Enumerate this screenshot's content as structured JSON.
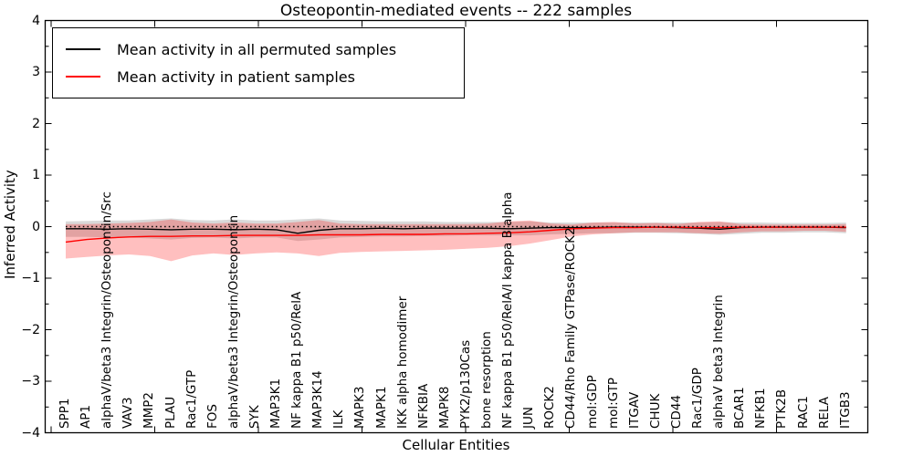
{
  "chart_data": {
    "type": "line",
    "title": "Osteopontin-mediated events -- 222 samples",
    "xlabel": "Cellular Entities",
    "ylabel": "Inferred Activity",
    "ylim": [
      -4,
      4
    ],
    "yticks": [
      4,
      3,
      2,
      1,
      0,
      -1,
      -2,
      -3,
      -4
    ],
    "ytick_labels": [
      "4",
      "3",
      "2",
      "1",
      "0",
      "−1",
      "−2",
      "−3",
      "−4"
    ],
    "y_minor_step": 0.5,
    "grid": false,
    "legend_position": "upper left",
    "reference_line": {
      "y": 0,
      "style": "dotted",
      "color": "#000000"
    },
    "categories": [
      "SPP1",
      "AP1",
      "alphaV/beta3 Integrin/Osteopontin/Src",
      "VAV3",
      "MMP2",
      "PLAU",
      "Rac1/GTP",
      "FOS",
      "alphaV/beta3 Integrin/Osteopontin",
      "SYK",
      "MAP3K1",
      "NF kappa B1 p50/RelA",
      "MAP3K14",
      "ILK",
      "MAPK3",
      "MAPK1",
      "IKK alpha homodimer",
      "NFKBIA",
      "MAPK8",
      "PYK2/p130Cas",
      "bone resorption",
      "NF kappa B1 p50/RelA/I kappa B alpha",
      "JUN",
      "ROCK2",
      "CD44/Rho Family GTPase/ROCK2",
      "mol:GDP",
      "mol:GTP",
      "ITGAV",
      "CHUK",
      "CD44",
      "Rac1/GDP",
      "alphaV beta3 Integrin",
      "BCAR1",
      "NFKB1",
      "PTK2B",
      "RAC1",
      "RELA",
      "ITGB3"
    ],
    "series": [
      {
        "name": "Mean activity in all permuted samples",
        "color": "#000000",
        "band_color": "rgba(0,0,0,0.15)",
        "values": [
          -0.04,
          -0.04,
          -0.05,
          -0.04,
          -0.05,
          -0.06,
          -0.05,
          -0.05,
          -0.06,
          -0.05,
          -0.06,
          -0.13,
          -0.07,
          -0.04,
          -0.04,
          -0.03,
          -0.04,
          -0.03,
          -0.03,
          -0.03,
          -0.03,
          -0.04,
          -0.03,
          -0.02,
          -0.02,
          -0.02,
          -0.01,
          -0.01,
          -0.01,
          -0.02,
          -0.03,
          -0.05,
          -0.02,
          -0.01,
          -0.01,
          -0.01,
          -0.01,
          -0.02
        ],
        "band_upper": [
          0.1,
          0.11,
          0.12,
          0.12,
          0.14,
          0.16,
          0.13,
          0.12,
          0.14,
          0.12,
          0.12,
          0.14,
          0.16,
          0.12,
          0.11,
          0.1,
          0.1,
          0.1,
          0.09,
          0.09,
          0.09,
          0.09,
          0.1,
          0.08,
          0.08,
          0.08,
          0.08,
          0.08,
          0.08,
          0.08,
          0.08,
          0.09,
          0.08,
          0.08,
          0.07,
          0.07,
          0.07,
          0.08
        ],
        "band_lower": [
          -0.2,
          -0.2,
          -0.21,
          -0.21,
          -0.23,
          -0.25,
          -0.22,
          -0.21,
          -0.23,
          -0.21,
          -0.21,
          -0.28,
          -0.25,
          -0.21,
          -0.2,
          -0.19,
          -0.19,
          -0.18,
          -0.18,
          -0.17,
          -0.17,
          -0.17,
          -0.17,
          -0.15,
          -0.14,
          -0.13,
          -0.13,
          -0.12,
          -0.12,
          -0.13,
          -0.14,
          -0.16,
          -0.14,
          -0.12,
          -0.12,
          -0.11,
          -0.11,
          -0.13
        ]
      },
      {
        "name": "Mean activity in patient samples",
        "color": "#ff0000",
        "band_color": "rgba(255,0,0,0.25)",
        "values": [
          -0.3,
          -0.25,
          -0.22,
          -0.2,
          -0.19,
          -0.19,
          -0.18,
          -0.18,
          -0.17,
          -0.17,
          -0.17,
          -0.17,
          -0.16,
          -0.16,
          -0.16,
          -0.15,
          -0.15,
          -0.15,
          -0.14,
          -0.14,
          -0.13,
          -0.12,
          -0.1,
          -0.07,
          -0.04,
          -0.03,
          -0.02,
          -0.02,
          -0.01,
          -0.01,
          -0.02,
          -0.02,
          -0.01,
          -0.01,
          -0.01,
          -0.01,
          -0.01,
          -0.01
        ],
        "band_upper": [
          0.05,
          0.05,
          0.06,
          0.07,
          0.09,
          0.14,
          0.08,
          0.06,
          0.08,
          0.06,
          0.06,
          0.09,
          0.13,
          0.06,
          0.05,
          0.05,
          0.05,
          0.05,
          0.05,
          0.05,
          0.06,
          0.1,
          0.12,
          0.06,
          0.04,
          0.08,
          0.09,
          0.06,
          0.07,
          0.05,
          0.09,
          0.1,
          0.05,
          0.04,
          0.04,
          0.04,
          0.04,
          0.05
        ],
        "band_lower": [
          -0.62,
          -0.59,
          -0.56,
          -0.54,
          -0.57,
          -0.67,
          -0.56,
          -0.52,
          -0.55,
          -0.52,
          -0.5,
          -0.52,
          -0.57,
          -0.51,
          -0.49,
          -0.48,
          -0.47,
          -0.46,
          -0.45,
          -0.43,
          -0.41,
          -0.38,
          -0.33,
          -0.26,
          -0.19,
          -0.15,
          -0.13,
          -0.11,
          -0.11,
          -0.11,
          -0.13,
          -0.14,
          -0.11,
          -0.09,
          -0.09,
          -0.08,
          -0.08,
          -0.1
        ]
      }
    ]
  }
}
